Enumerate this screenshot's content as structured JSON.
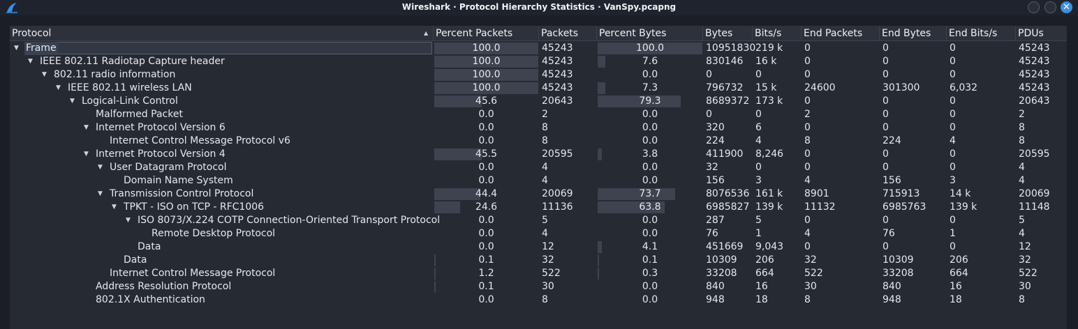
{
  "window": {
    "title": "Wireshark · Protocol Hierarchy Statistics · VanSpy.pcapng"
  },
  "columns": [
    "Protocol",
    "Percent Packets",
    "Packets",
    "Percent Bytes",
    "Bytes",
    "Bits/s",
    "End Packets",
    "End Bytes",
    "End Bits/s",
    "PDUs"
  ],
  "rows": [
    {
      "name": "Frame",
      "level": 0,
      "expanded": true,
      "pct_packets": "100.0",
      "packets": "45243",
      "pct_bytes": "100.0",
      "bytes": "10951830",
      "bits": "219 k",
      "end_packets": "0",
      "end_bytes": "0",
      "end_bits": "0",
      "pdus": "45243"
    },
    {
      "name": "IEEE 802.11 Radiotap Capture header",
      "level": 1,
      "expanded": true,
      "pct_packets": "100.0",
      "packets": "45243",
      "pct_bytes": "7.6",
      "bytes": "830146",
      "bits": "16 k",
      "end_packets": "0",
      "end_bytes": "0",
      "end_bits": "0",
      "pdus": "45243"
    },
    {
      "name": "802.11 radio information",
      "level": 2,
      "expanded": true,
      "pct_packets": "100.0",
      "packets": "45243",
      "pct_bytes": "0.0",
      "bytes": "0",
      "bits": "0",
      "end_packets": "0",
      "end_bytes": "0",
      "end_bits": "0",
      "pdus": "45243"
    },
    {
      "name": "IEEE 802.11 wireless LAN",
      "level": 3,
      "expanded": true,
      "pct_packets": "100.0",
      "packets": "45243",
      "pct_bytes": "7.3",
      "bytes": "796732",
      "bits": "15 k",
      "end_packets": "24600",
      "end_bytes": "301300",
      "end_bits": "6,032",
      "pdus": "45243"
    },
    {
      "name": "Logical-Link Control",
      "level": 4,
      "expanded": true,
      "pct_packets": "45.6",
      "packets": "20643",
      "pct_bytes": "79.3",
      "bytes": "8689372",
      "bits": "173 k",
      "end_packets": "0",
      "end_bytes": "0",
      "end_bits": "0",
      "pdus": "20643"
    },
    {
      "name": "Malformed Packet",
      "level": 5,
      "expanded": false,
      "pct_packets": "0.0",
      "packets": "2",
      "pct_bytes": "0.0",
      "bytes": "0",
      "bits": "0",
      "end_packets": "2",
      "end_bytes": "0",
      "end_bits": "0",
      "pdus": "2"
    },
    {
      "name": "Internet Protocol Version 6",
      "level": 5,
      "expanded": true,
      "pct_packets": "0.0",
      "packets": "8",
      "pct_bytes": "0.0",
      "bytes": "320",
      "bits": "6",
      "end_packets": "0",
      "end_bytes": "0",
      "end_bits": "0",
      "pdus": "8"
    },
    {
      "name": "Internet Control Message Protocol v6",
      "level": 6,
      "expanded": false,
      "pct_packets": "0.0",
      "packets": "8",
      "pct_bytes": "0.0",
      "bytes": "224",
      "bits": "4",
      "end_packets": "8",
      "end_bytes": "224",
      "end_bits": "4",
      "pdus": "8"
    },
    {
      "name": "Internet Protocol Version 4",
      "level": 5,
      "expanded": true,
      "pct_packets": "45.5",
      "packets": "20595",
      "pct_bytes": "3.8",
      "bytes": "411900",
      "bits": "8,246",
      "end_packets": "0",
      "end_bytes": "0",
      "end_bits": "0",
      "pdus": "20595"
    },
    {
      "name": "User Datagram Protocol",
      "level": 6,
      "expanded": true,
      "pct_packets": "0.0",
      "packets": "4",
      "pct_bytes": "0.0",
      "bytes": "32",
      "bits": "0",
      "end_packets": "0",
      "end_bytes": "0",
      "end_bits": "0",
      "pdus": "4"
    },
    {
      "name": "Domain Name System",
      "level": 7,
      "expanded": false,
      "pct_packets": "0.0",
      "packets": "4",
      "pct_bytes": "0.0",
      "bytes": "156",
      "bits": "3",
      "end_packets": "4",
      "end_bytes": "156",
      "end_bits": "3",
      "pdus": "4"
    },
    {
      "name": "Transmission Control Protocol",
      "level": 6,
      "expanded": true,
      "pct_packets": "44.4",
      "packets": "20069",
      "pct_bytes": "73.7",
      "bytes": "8076536",
      "bits": "161 k",
      "end_packets": "8901",
      "end_bytes": "715913",
      "end_bits": "14 k",
      "pdus": "20069"
    },
    {
      "name": "TPKT - ISO on TCP - RFC1006",
      "level": 7,
      "expanded": true,
      "pct_packets": "24.6",
      "packets": "11136",
      "pct_bytes": "63.8",
      "bytes": "6985827",
      "bits": "139 k",
      "end_packets": "11132",
      "end_bytes": "6985763",
      "end_bits": "139 k",
      "pdus": "11148"
    },
    {
      "name": "ISO 8073/X.224 COTP Connection-Oriented Transport Protocol",
      "level": 8,
      "expanded": true,
      "pct_packets": "0.0",
      "packets": "5",
      "pct_bytes": "0.0",
      "bytes": "287",
      "bits": "5",
      "end_packets": "0",
      "end_bytes": "0",
      "end_bits": "0",
      "pdus": "5"
    },
    {
      "name": "Remote Desktop Protocol",
      "level": 9,
      "expanded": false,
      "pct_packets": "0.0",
      "packets": "4",
      "pct_bytes": "0.0",
      "bytes": "76",
      "bits": "1",
      "end_packets": "4",
      "end_bytes": "76",
      "end_bits": "1",
      "pdus": "4"
    },
    {
      "name": "Data",
      "level": 8,
      "expanded": false,
      "pct_packets": "0.0",
      "packets": "12",
      "pct_bytes": "4.1",
      "bytes": "451669",
      "bits": "9,043",
      "end_packets": "0",
      "end_bytes": "0",
      "end_bits": "0",
      "pdus": "12"
    },
    {
      "name": "Data",
      "level": 7,
      "expanded": false,
      "pct_packets": "0.1",
      "packets": "32",
      "pct_bytes": "0.1",
      "bytes": "10309",
      "bits": "206",
      "end_packets": "32",
      "end_bytes": "10309",
      "end_bits": "206",
      "pdus": "32"
    },
    {
      "name": "Internet Control Message Protocol",
      "level": 6,
      "expanded": false,
      "pct_packets": "1.2",
      "packets": "522",
      "pct_bytes": "0.3",
      "bytes": "33208",
      "bits": "664",
      "end_packets": "522",
      "end_bytes": "33208",
      "end_bits": "664",
      "pdus": "522"
    },
    {
      "name": "Address Resolution Protocol",
      "level": 5,
      "expanded": false,
      "pct_packets": "0.1",
      "packets": "30",
      "pct_bytes": "0.0",
      "bytes": "840",
      "bits": "16",
      "end_packets": "30",
      "end_bytes": "840",
      "end_bits": "16",
      "pdus": "30"
    },
    {
      "name": "802.1X Authentication",
      "level": 5,
      "expanded": false,
      "pct_packets": "0.0",
      "packets": "8",
      "pct_bytes": "0.0",
      "bytes": "948",
      "bits": "18",
      "end_packets": "8",
      "end_bytes": "948",
      "end_bits": "18",
      "pdus": "8"
    }
  ]
}
